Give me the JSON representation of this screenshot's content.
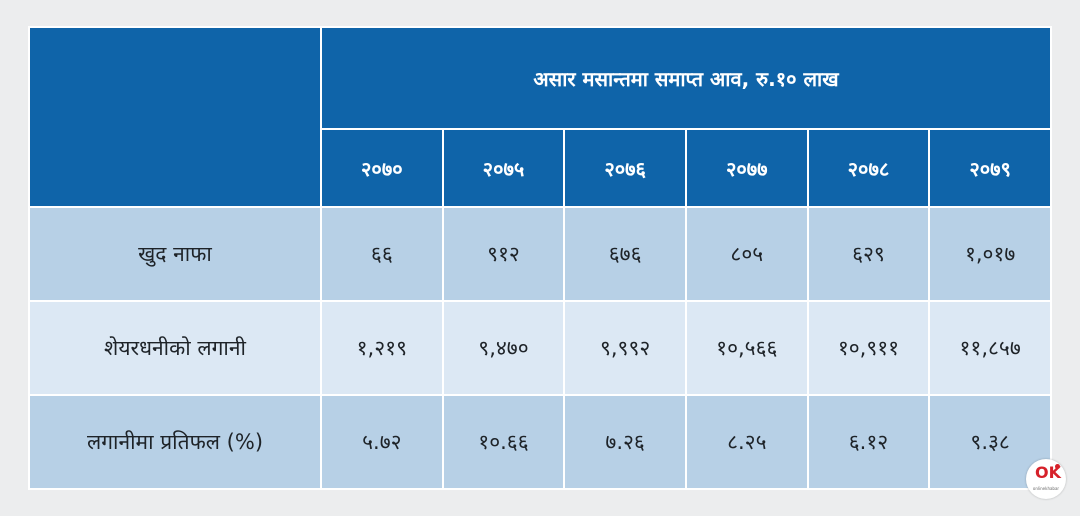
{
  "table": {
    "corner": "",
    "caption": "असार मसान्तमा समाप्त आव, रु.१० लाख",
    "years": [
      "२०७०",
      "२०७५",
      "२०७६",
      "२०७७",
      "२०७८",
      "२०७९"
    ],
    "rows": [
      {
        "label": "खुद नाफा",
        "values": [
          "६६",
          "९१२",
          "६७६",
          "८०५",
          "६२९",
          "१,०१७"
        ]
      },
      {
        "label": "शेयरधनीको लगानी",
        "values": [
          "१,२१९",
          "९,४७०",
          "९,९९२",
          "१०,५६६",
          "१०,९११",
          "११,८५७"
        ]
      },
      {
        "label": "लगानीमा प्रतिफल (%)",
        "values": [
          "५.७२",
          "१०.६६",
          "७.२६",
          "८.२५",
          "६.१२",
          "९.३८"
        ]
      }
    ]
  },
  "logo": {
    "mark_left": "O",
    "mark_right": "K",
    "text": "onlinekhabar"
  },
  "colors": {
    "header": "#0f64a9",
    "row_dark": "#b7d0e6",
    "row_light": "#dce8f4"
  }
}
